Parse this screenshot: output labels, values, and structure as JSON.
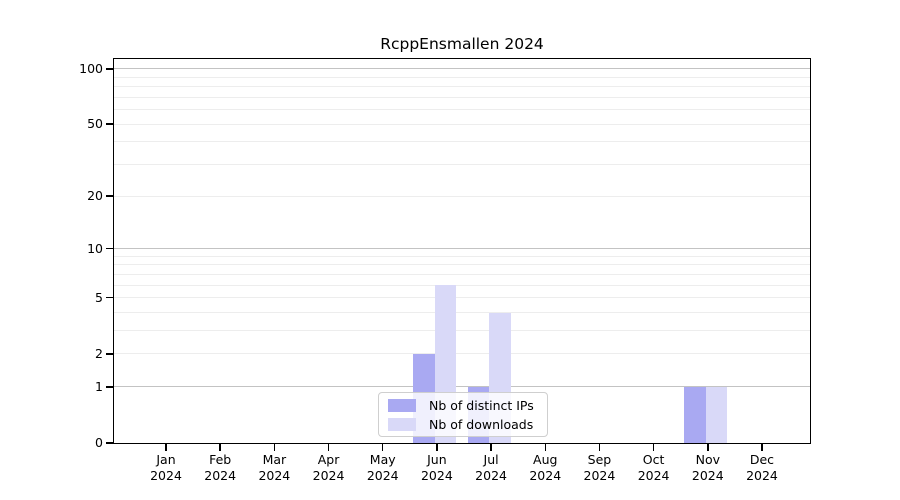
{
  "title": "RcppEnsmallen 2024",
  "chart_data": {
    "type": "bar",
    "title": "RcppEnsmallen 2024",
    "year": "2024",
    "categories": [
      "Jan",
      "Feb",
      "Mar",
      "Apr",
      "May",
      "Jun",
      "Jul",
      "Aug",
      "Sep",
      "Oct",
      "Nov",
      "Dec"
    ],
    "series": [
      {
        "name": "Nb of distinct IPs",
        "color": "#a9a9f2",
        "values": [
          0,
          0,
          0,
          0,
          0,
          2,
          1,
          0,
          0,
          0,
          1,
          0
        ]
      },
      {
        "name": "Nb of downloads",
        "color": "#d9d9f8",
        "values": [
          0,
          0,
          0,
          0,
          0,
          6,
          4,
          0,
          0,
          0,
          1,
          0
        ]
      }
    ],
    "yscale": "log1p",
    "ylim": [
      0,
      113
    ],
    "y_ticks": [
      0,
      1,
      2,
      5,
      10,
      20,
      50,
      100
    ],
    "y_major_gridlines": [
      1,
      10,
      100
    ],
    "y_minor_gridlines": [
      2,
      3,
      4,
      5,
      6,
      7,
      8,
      9,
      20,
      30,
      40,
      50,
      60,
      70,
      80,
      90
    ],
    "grid": true,
    "legend_position": "inside-bottom-center",
    "axis_color": "#000000",
    "major_grid_color": "#c3c3c3",
    "minor_grid_color": "#ededed",
    "background": "#ffffff"
  }
}
